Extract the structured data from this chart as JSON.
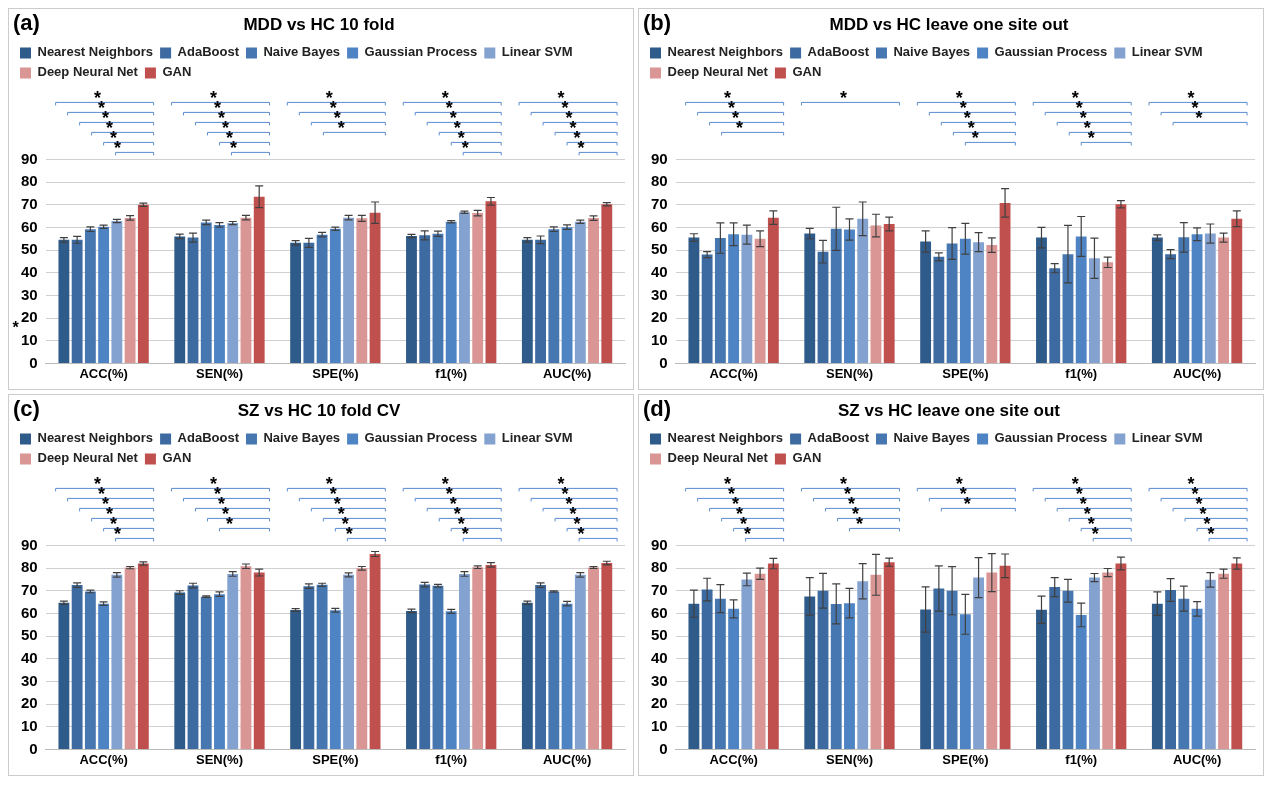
{
  "chart_data": [
    {
      "type": "bar",
      "title": "MDD vs HC 10 fold",
      "categories": [
        "ACC(%)",
        "SEN(%)",
        "SPE(%)",
        "f1(%)",
        "AUC(%)"
      ],
      "ylim": [
        0,
        90
      ],
      "yticks": [
        0,
        10,
        20,
        30,
        40,
        50,
        60,
        70,
        80,
        90
      ],
      "grid": "y",
      "legend": "top",
      "series": [
        {
          "name": "Nearest Neighbors",
          "color": "#2f5b8a",
          "values": [
            54.5,
            56,
            53.2,
            56.2,
            54.5
          ],
          "errors": [
            1,
            1,
            1,
            0.7,
            1
          ]
        },
        {
          "name": "AdaBoost",
          "color": "#3d6aa0",
          "values": [
            54.5,
            55.5,
            53.2,
            56.5,
            54.5
          ],
          "errors": [
            1.5,
            2,
            2,
            2,
            1.7
          ]
        },
        {
          "name": "Naive Bayes",
          "color": "#4677b0",
          "values": [
            59.2,
            62.2,
            56.8,
            57.2,
            59.2
          ],
          "errors": [
            1,
            1,
            1,
            1.2,
            1
          ]
        },
        {
          "name": "Gaussian Process",
          "color": "#4f84c4",
          "values": [
            60.3,
            61.1,
            59.4,
            62.5,
            60.1
          ],
          "errors": [
            0.7,
            1,
            0.7,
            0.5,
            1
          ]
        },
        {
          "name": "Linear SVM",
          "color": "#84a2d0",
          "values": [
            62.8,
            61.9,
            64.3,
            66.7,
            62.5
          ],
          "errors": [
            0.7,
            0.7,
            1,
            0.5,
            0.7
          ]
        },
        {
          "name": "Deep Neural Net",
          "color": "#da9694",
          "values": [
            64.2,
            64.3,
            64,
            66.3,
            64.1
          ],
          "errors": [
            1,
            1,
            1.3,
            1.2,
            1
          ]
        },
        {
          "name": "GAN",
          "color": "#c0504d",
          "values": [
            70,
            73.5,
            66.5,
            71.5,
            70.2
          ],
          "errors": [
            0.7,
            4.8,
            4.7,
            1.7,
            0.7
          ]
        }
      ],
      "annotations": [
        "(a)",
        "*",
        "*",
        "*",
        "*",
        "*",
        "*",
        "*",
        "*",
        "*",
        "*",
        "*",
        "*",
        "*",
        "*",
        "*",
        "*",
        "*",
        "*",
        "*",
        "*",
        "*",
        "*",
        "*",
        "*",
        "*",
        "*",
        "*",
        "*",
        "*"
      ]
    },
    {
      "type": "bar",
      "title": "MDD vs HC leave one site out",
      "categories": [
        "ACC(%)",
        "SEN(%)",
        "SPE(%)",
        "f1(%)",
        "AUC(%)"
      ],
      "ylim": [
        0,
        90
      ],
      "yticks": [
        0,
        10,
        20,
        30,
        40,
        50,
        60,
        70,
        80,
        90
      ],
      "grid": "y",
      "legend": "top",
      "series": [
        {
          "name": "Nearest Neighbors",
          "color": "#2f5b8a",
          "values": [
            55.5,
            57.3,
            53.8,
            55.5,
            55.5
          ],
          "errors": [
            1.7,
            2.3,
            4.7,
            4.5,
            1.2
          ]
        },
        {
          "name": "AdaBoost",
          "color": "#3d6aa0",
          "values": [
            48,
            49.3,
            47,
            42,
            48.2
          ],
          "errors": [
            1.3,
            5,
            1.8,
            2,
            2
          ]
        },
        {
          "name": "Naive Bayes",
          "color": "#4677b0",
          "values": [
            55.3,
            59.4,
            52.9,
            48.2,
            55.6
          ],
          "errors": [
            6.7,
            9.5,
            7,
            12.7,
            6.5
          ]
        },
        {
          "name": "Gaussian Process",
          "color": "#4f84c4",
          "values": [
            57,
            59.1,
            55,
            56,
            57
          ],
          "errors": [
            5,
            4.7,
            6.8,
            8.8,
            2.8
          ]
        },
        {
          "name": "Linear SVM",
          "color": "#84a2d0",
          "values": [
            56.8,
            63.8,
            53.5,
            46.4,
            57.3
          ],
          "errors": [
            4.2,
            7.4,
            4.2,
            8.9,
            4.2
          ]
        },
        {
          "name": "Deep Neural Net",
          "color": "#da9694",
          "values": [
            55,
            60.8,
            52.2,
            44.6,
            55.5
          ],
          "errors": [
            3.5,
            5,
            3.2,
            2.3,
            2
          ]
        },
        {
          "name": "GAN",
          "color": "#c0504d",
          "values": [
            64.3,
            61.5,
            70.8,
            70.2,
            63.8
          ],
          "errors": [
            3,
            3,
            6.3,
            1.6,
            3.5
          ]
        }
      ],
      "annotations": [
        "(b)",
        "*",
        "*",
        "*",
        "*",
        "*",
        "*",
        "*",
        "*",
        "*",
        "*",
        "*",
        "*",
        "*",
        "*",
        "*",
        "*",
        "*",
        "*"
      ]
    },
    {
      "type": "bar",
      "title": "SZ vs HC 10 fold CV",
      "categories": [
        "ACC(%)",
        "SEN(%)",
        "SPE(%)",
        "f1(%)",
        "AUC(%)"
      ],
      "ylim": [
        0,
        90
      ],
      "yticks": [
        0,
        10,
        20,
        30,
        40,
        50,
        60,
        70,
        80,
        90
      ],
      "grid": "y",
      "legend": "top",
      "series": [
        {
          "name": "Nearest Neighbors",
          "color": "#2f5b8a",
          "values": [
            64.7,
            69.2,
            61.5,
            61.1,
            64.7
          ],
          "errors": [
            0.7,
            0.8,
            0.6,
            0.8,
            0.7
          ]
        },
        {
          "name": "AdaBoost",
          "color": "#3d6aa0",
          "values": [
            72.5,
            72.3,
            72,
            72.7,
            72.5
          ],
          "errors": [
            1,
            1,
            1,
            1,
            1
          ]
        },
        {
          "name": "Naive Bayes",
          "color": "#4677b0",
          "values": [
            69.7,
            67.4,
            72.6,
            72.2,
            69.7
          ],
          "errors": [
            0.6,
            0.3,
            0.7,
            0.6,
            0.3
          ]
        },
        {
          "name": "Gaussian Process",
          "color": "#4f84c4",
          "values": [
            64.3,
            68.5,
            61.4,
            60.9,
            64.3
          ],
          "errors": [
            0.8,
            1,
            0.8,
            0.9,
            1
          ]
        },
        {
          "name": "Linear SVM",
          "color": "#84a2d0",
          "values": [
            77,
            77.4,
            77,
            77.4,
            77
          ],
          "errors": [
            1,
            1,
            0.9,
            1,
            1
          ]
        },
        {
          "name": "Deep Neural Net",
          "color": "#da9694",
          "values": [
            80.2,
            80.8,
            79.9,
            80.4,
            80.2
          ],
          "errors": [
            0.5,
            1,
            0.8,
            0.6,
            0.4
          ]
        },
        {
          "name": "GAN",
          "color": "#c0504d",
          "values": [
            82,
            78,
            86.2,
            81.4,
            82.2
          ],
          "errors": [
            0.7,
            1.5,
            1.1,
            1,
            0.8
          ]
        }
      ],
      "annotations": [
        "(c)",
        "*",
        "*",
        "*",
        "*",
        "*",
        "*",
        "*",
        "*",
        "*",
        "*",
        "*",
        "*",
        "*",
        "*",
        "*",
        "*",
        "*",
        "*",
        "*",
        "*",
        "*",
        "*",
        "*",
        "*",
        "*",
        "*",
        "*",
        "*",
        "*"
      ]
    },
    {
      "type": "bar",
      "title": "SZ vs HC leave one site out",
      "categories": [
        "ACC(%)",
        "SEN(%)",
        "SPE(%)",
        "f1(%)",
        "AUC(%)"
      ],
      "ylim": [
        0,
        90
      ],
      "yticks": [
        0,
        10,
        20,
        30,
        40,
        50,
        60,
        70,
        80,
        90
      ],
      "grid": "y",
      "legend": "top",
      "series": [
        {
          "name": "Nearest Neighbors",
          "color": "#2f5b8a",
          "values": [
            64.3,
            67.5,
            61.7,
            61.6,
            64.3
          ],
          "errors": [
            6,
            8.3,
            10,
            6,
            5.2
          ]
        },
        {
          "name": "AdaBoost",
          "color": "#3d6aa0",
          "values": [
            70.5,
            70,
            71,
            71.6,
            70.3
          ],
          "errors": [
            5,
            7.7,
            10,
            4.2,
            5
          ]
        },
        {
          "name": "Naive Bayes",
          "color": "#4677b0",
          "values": [
            66.5,
            64.2,
            70,
            70,
            66.5
          ],
          "errors": [
            6.2,
            8.8,
            10.6,
            5,
            5.5
          ]
        },
        {
          "name": "Gaussian Process",
          "color": "#4f84c4",
          "values": [
            62,
            64.5,
            59.6,
            59.3,
            62
          ],
          "errors": [
            4,
            6.5,
            8.8,
            5.2,
            3.2
          ]
        },
        {
          "name": "Linear SVM",
          "color": "#84a2d0",
          "values": [
            75,
            74.2,
            75.8,
            75.8,
            74.8
          ],
          "errors": [
            2.8,
            7.8,
            8.8,
            1.8,
            3.2
          ]
        },
        {
          "name": "Deep Neural Net",
          "color": "#da9694",
          "values": [
            77.5,
            77,
            78,
            78,
            77.5
          ],
          "errors": [
            2.5,
            9,
            8.4,
            1.8,
            2
          ]
        },
        {
          "name": "GAN",
          "color": "#c0504d",
          "values": [
            82,
            82.6,
            81,
            82,
            82
          ],
          "errors": [
            2.3,
            1.8,
            5.2,
            2.8,
            2.5
          ]
        }
      ],
      "annotations": [
        "(d)",
        "*",
        "*",
        "*",
        "*",
        "*",
        "*",
        "*",
        "*",
        "*",
        "*",
        "*",
        "*",
        "*",
        "*",
        "*",
        "*",
        "*",
        "*",
        "*",
        "*",
        "*",
        "*",
        "*",
        "*",
        "*",
        "*"
      ]
    }
  ]
}
